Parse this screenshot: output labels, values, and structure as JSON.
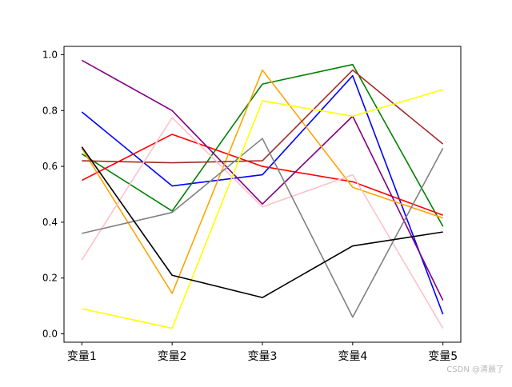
{
  "chart_data": {
    "type": "line",
    "categories": [
      "变量1",
      "变量2",
      "变量3",
      "变量4",
      "变量5"
    ],
    "ylim": [
      -0.03,
      1.03
    ],
    "yticks": [
      "0.0",
      "0.2",
      "0.4",
      "0.6",
      "0.8",
      "1.0"
    ],
    "yticks_values": [
      0.0,
      0.2,
      0.4,
      0.6,
      0.8,
      1.0
    ],
    "grid": false,
    "legend": "none",
    "series": [
      {
        "color": "#0000ff",
        "values": [
          0.795,
          0.53,
          0.57,
          0.925,
          0.07
        ]
      },
      {
        "color": "#008000",
        "values": [
          0.645,
          0.44,
          0.895,
          0.965,
          0.385
        ]
      },
      {
        "color": "#ff0000",
        "values": [
          0.55,
          0.715,
          0.6,
          0.545,
          0.425
        ]
      },
      {
        "color": "#800080",
        "values": [
          0.98,
          0.8,
          0.465,
          0.78,
          0.12
        ]
      },
      {
        "color": "#ffa500",
        "values": [
          0.665,
          0.145,
          0.945,
          0.525,
          0.415
        ]
      },
      {
        "color": "#a52a2a",
        "values": [
          0.62,
          0.613,
          0.62,
          0.945,
          0.68
        ]
      },
      {
        "color": "#ffc0cb",
        "values": [
          0.265,
          0.775,
          0.455,
          0.57,
          0.02
        ]
      },
      {
        "color": "#808080",
        "values": [
          0.36,
          0.435,
          0.7,
          0.06,
          0.665
        ]
      },
      {
        "color": "#ffff00",
        "values": [
          0.09,
          0.02,
          0.835,
          0.78,
          0.875
        ]
      },
      {
        "color": "#000000",
        "values": [
          0.67,
          0.21,
          0.13,
          0.315,
          0.365
        ]
      }
    ]
  },
  "watermark": "CSDN @清晨了"
}
